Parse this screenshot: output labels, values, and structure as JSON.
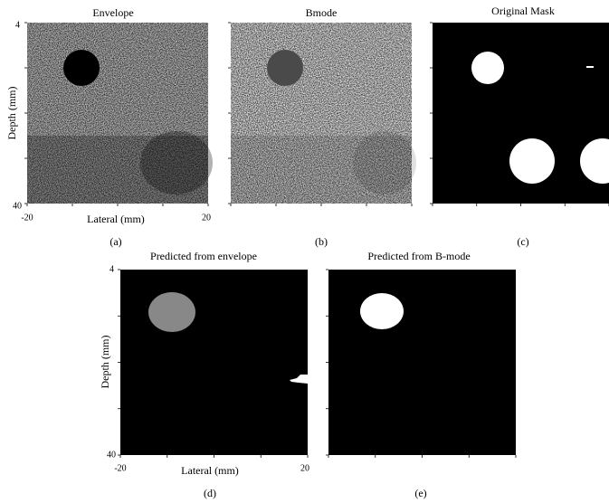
{
  "panels": [
    {
      "title": "Envelope",
      "caption": "(a)",
      "y_label": "Depth (mm)",
      "x_label": "Lateral (mm)",
      "y_ticks": [
        4,
        40
      ],
      "x_ticks": [
        -20,
        20
      ]
    },
    {
      "title": "Bmode",
      "caption": "(b)"
    },
    {
      "title": "Original Mask",
      "caption": "(c)"
    },
    {
      "title": "Predicted from envelope",
      "caption": "(d)",
      "y_label": "Depth (mm)",
      "x_label": "Lateral (mm)",
      "y_ticks": [
        4,
        40
      ],
      "x_ticks": [
        -20,
        20
      ]
    },
    {
      "title": "Predicted from B-mode",
      "caption": "(e)"
    }
  ]
}
